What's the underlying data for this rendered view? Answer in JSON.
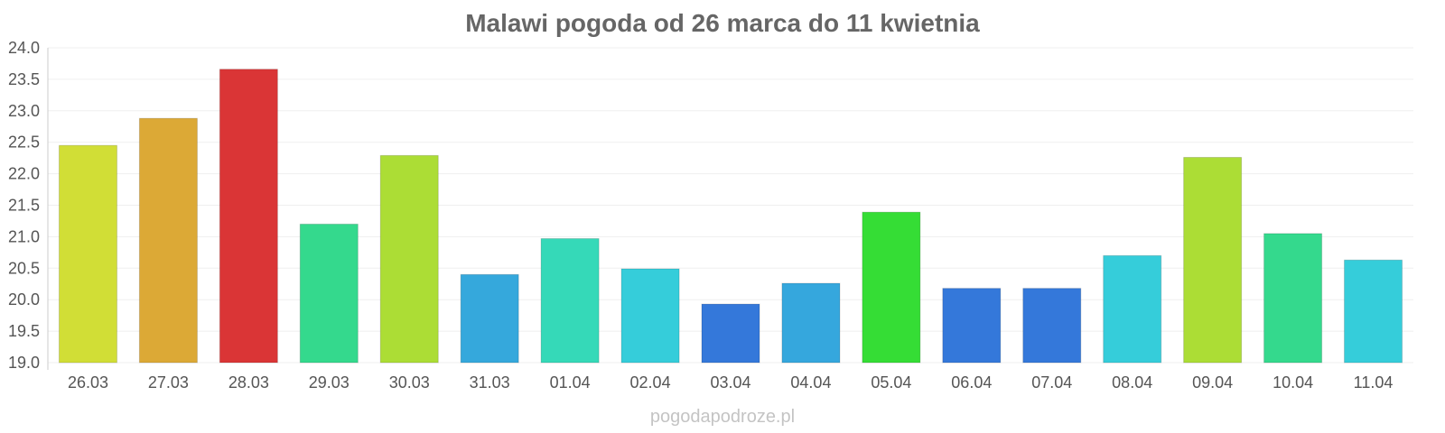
{
  "chart_data": {
    "type": "bar",
    "title": "Malawi pogoda od 26 marca do 11 kwietnia",
    "categories": [
      "26.03",
      "27.03",
      "28.03",
      "29.03",
      "30.03",
      "31.03",
      "01.04",
      "02.04",
      "03.04",
      "04.04",
      "05.04",
      "06.04",
      "07.04",
      "08.04",
      "09.04",
      "10.04",
      "11.04"
    ],
    "values": [
      22.45,
      22.88,
      23.66,
      21.2,
      22.29,
      20.4,
      20.97,
      20.49,
      19.93,
      20.26,
      21.39,
      20.18,
      20.18,
      20.7,
      22.26,
      21.05,
      20.63
    ],
    "colors": [
      "#d1de36",
      "#dca936",
      "#da3536",
      "#34d98d",
      "#acdd35",
      "#35a8dc",
      "#35d9b8",
      "#35cdda",
      "#3478da",
      "#35a7dd",
      "#35dd35",
      "#3478da",
      "#3478da",
      "#35cdda",
      "#acdd35",
      "#34d98d",
      "#35cdda"
    ],
    "ylim": [
      19.0,
      24.0
    ],
    "yticks": [
      "19.0",
      "19.5",
      "20.0",
      "20.5",
      "21.0",
      "21.5",
      "22.0",
      "22.5",
      "23.0",
      "23.5",
      "24.0"
    ],
    "grid": true
  },
  "footer": "pogodapodroze.pl"
}
